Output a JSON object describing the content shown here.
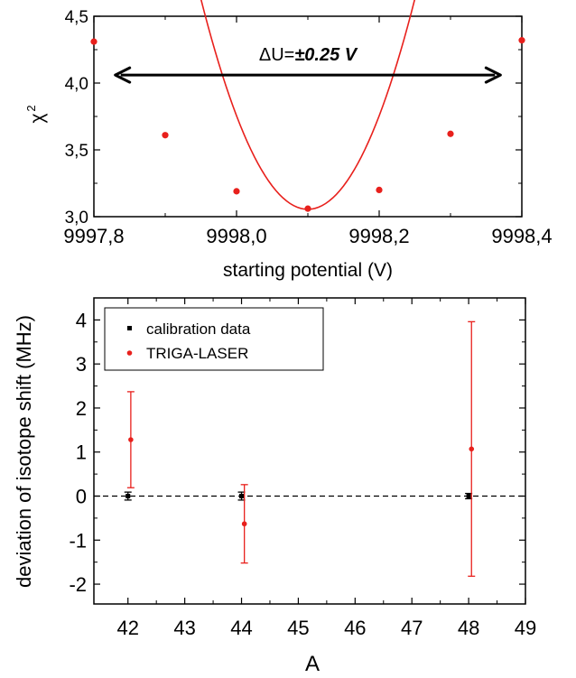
{
  "chart_data": [
    {
      "type": "scatter",
      "xlabel": "starting potential (V)",
      "ylabel": "χ",
      "ylabel_sup": "2",
      "xlim": [
        9997.8,
        9998.4
      ],
      "ylim": [
        3.0,
        4.5
      ],
      "xticks": [
        "9997,8",
        "9998,0",
        "9998,2",
        "9998,4"
      ],
      "xtick_values": [
        9997.8,
        9998.0,
        9998.2,
        9998.4
      ],
      "yticks": [
        "3,0",
        "3,5",
        "4,0",
        "4,5"
      ],
      "ytick_values": [
        3.0,
        3.5,
        4.0,
        4.5
      ],
      "series": [
        {
          "color": "#e8201c",
          "points": [
            {
              "x": 9997.8,
              "y": 4.31
            },
            {
              "x": 9997.9,
              "y": 3.61
            },
            {
              "x": 9998.0,
              "y": 3.19
            },
            {
              "x": 9998.1,
              "y": 3.06
            },
            {
              "x": 9998.2,
              "y": 3.2
            },
            {
              "x": 9998.3,
              "y": 3.62
            },
            {
              "x": 9998.4,
              "y": 4.32
            }
          ]
        }
      ],
      "fit": {
        "color": "#e8201c",
        "vertex_x": 9998.1,
        "vertex_y": 3.055,
        "curvature": 70
      },
      "annotation": {
        "prefix": "ΔU=",
        "value": "±0.25 V",
        "arrow_from": 9997.83,
        "arrow_to": 9998.37,
        "arrow_y": 4.06
      }
    },
    {
      "type": "scatter",
      "xlabel": "A",
      "ylabel": "deviation of isotope shift (MHz)",
      "xlim": [
        41.4,
        49
      ],
      "ylim": [
        -2.45,
        4.5
      ],
      "xticks": [
        "42",
        "43",
        "44",
        "45",
        "46",
        "47",
        "48",
        "49"
      ],
      "xtick_values": [
        42,
        43,
        44,
        45,
        46,
        47,
        48,
        49
      ],
      "yticks": [
        "-2",
        "-1",
        "0",
        "1",
        "2",
        "3",
        "4"
      ],
      "ytick_values": [
        -2,
        -1,
        0,
        1,
        2,
        3,
        4
      ],
      "reference_line": 0,
      "legend": {
        "position": "top-left",
        "entries": [
          {
            "label": "calibration data",
            "color": "#000000",
            "marker": "square"
          },
          {
            "label": "TRIGA-LASER",
            "color": "#e8201c",
            "marker": "circle"
          }
        ]
      },
      "series": [
        {
          "name": "calibration data",
          "color": "#000000",
          "points": [
            {
              "x": 42,
              "y": 0.0,
              "err": 0.09
            },
            {
              "x": 44,
              "y": 0.0,
              "err": 0.09
            },
            {
              "x": 48,
              "y": 0.0,
              "err": 0.06
            }
          ]
        },
        {
          "name": "TRIGA-LASER",
          "color": "#e8201c",
          "points": [
            {
              "x": 42.05,
              "y": 1.28,
              "err": 1.09
            },
            {
              "x": 44.05,
              "y": -0.63,
              "err": 0.89
            },
            {
              "x": 48.05,
              "y": 1.07,
              "err": 2.89
            }
          ]
        }
      ]
    }
  ]
}
